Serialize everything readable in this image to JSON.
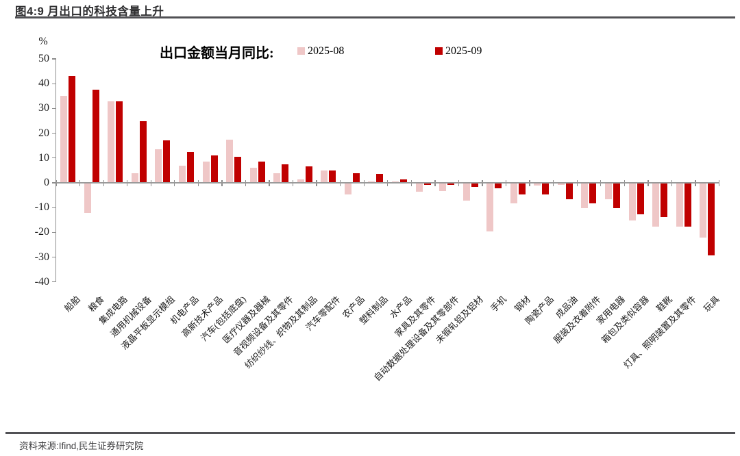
{
  "header": {
    "title": "图4:9 月出口的科技含量上升"
  },
  "footer": {
    "source": "资料来源:Ifind,民生证券研究院"
  },
  "colors": {
    "aug_pink": "#EFC7C7",
    "sep_red": "#C00000",
    "axis_gray": "#8c8c8c",
    "rule_dark": "#515155"
  },
  "chart_data": {
    "type": "bar",
    "title": "出口金额当月同比:",
    "unit_label": "%",
    "legend_position": "top",
    "grid": false,
    "ylim": [
      -40,
      50
    ],
    "ytick_step": 10,
    "ytick_values": [
      50,
      40,
      30,
      20,
      10,
      0,
      -10,
      -20,
      -30,
      -40
    ],
    "categories": [
      "船舶",
      "粮食",
      "集成电路",
      "通用机械设备",
      "液晶平板显示模组",
      "机电产品",
      "高新技术产品",
      "汽车(包括底盘)",
      "医疗仪器及器械",
      "音视频设备及其零件",
      "纺织纱线、织物及其制品",
      "汽车零配件",
      "农产品",
      "塑料制品",
      "水产品",
      "家具及其零件",
      "自动数据处理设备及其零部件",
      "未锻轧铝及铝材",
      "手机",
      "钢材",
      "陶瓷产品",
      "成品油",
      "服装及衣着附件",
      "家用电器",
      "箱包及类似容器",
      "鞋靴",
      "灯具、照明装置及其零件",
      "玩具"
    ],
    "series": [
      {
        "name": "2025-08",
        "color": "#EFC7C7",
        "values": [
          35,
          -12,
          33,
          4,
          13.5,
          7,
          8.5,
          17.5,
          6,
          4,
          1.5,
          5,
          -4.5,
          0.5,
          0.5,
          -3.5,
          -3,
          -7,
          -19.5,
          -8,
          -1,
          -0.5,
          -10,
          -6.5,
          -15,
          -17.5,
          -17.5,
          -22
        ]
      },
      {
        "name": "2025-09",
        "color": "#C00000",
        "values": [
          43,
          37.5,
          33,
          25,
          17,
          12.5,
          11,
          10.5,
          8.5,
          7.5,
          6.5,
          5,
          4,
          3.5,
          1.5,
          -0.5,
          -0.5,
          -1.5,
          -2,
          -4.5,
          -4.5,
          -6.5,
          -8,
          -10,
          -12.5,
          -13.5,
          -17.5,
          -29
        ]
      }
    ]
  }
}
